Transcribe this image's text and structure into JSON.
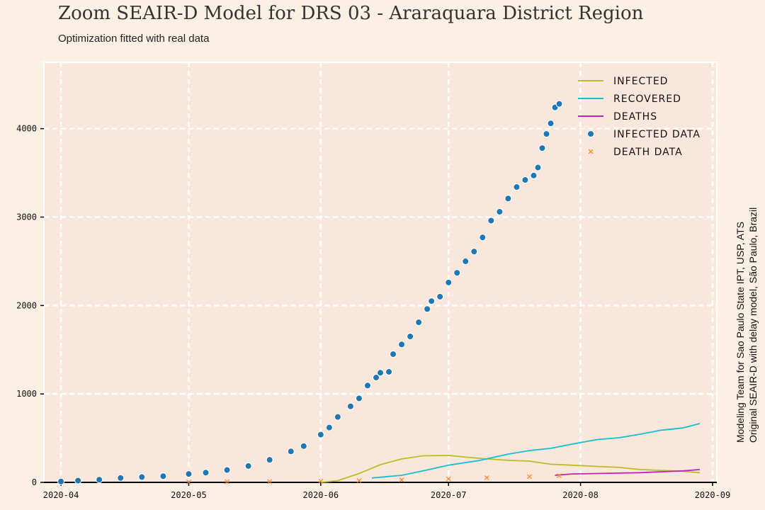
{
  "title": "Zoom SEAIR-D Model for DRS 03 - Araraquara District Region",
  "subtitle": "Optimization fitted with real data",
  "side_note": {
    "line1": "Modeling Team for Sao Paulo State IPT, USP, ATS",
    "line2": "Original SEAIR-D with delay model, São Paulo, Brazil"
  },
  "colors": {
    "background": "#fcefe4",
    "plot_background": "#fae7dc",
    "infected": "#bcbd22",
    "recovered": "#17becf",
    "deaths": "#c020c0",
    "infected_data": "#1f77b4",
    "death_data": "#ff7f0e",
    "grid": "#ffffff"
  },
  "chart_data": {
    "type": "line",
    "title": "Zoom SEAIR-D Model for DRS 03 - Araraquara District Region",
    "xlabel": "",
    "ylabel": "",
    "x_type": "date",
    "xlim": [
      "2020-03-28",
      "2020-09-02"
    ],
    "ylim": [
      0,
      4750
    ],
    "x_ticks": [
      "2020-04-01",
      "2020-05-01",
      "2020-06-01",
      "2020-07-01",
      "2020-08-01",
      "2020-09-01"
    ],
    "x_tick_labels": [
      "2020-04",
      "2020-05",
      "2020-06",
      "2020-07",
      "2020-08",
      "2020-09"
    ],
    "y_ticks": [
      0,
      1000,
      2000,
      3000,
      4000
    ],
    "y_tick_labels": [
      "0",
      "1000",
      "2000",
      "3000",
      "4000"
    ],
    "grid": true,
    "legend_position": "top-right",
    "legend": [
      "INFECTED",
      "RECOVERED",
      "DEATHS",
      "INFECTED DATA",
      "DEATH DATA"
    ],
    "series": [
      {
        "name": "INFECTED",
        "kind": "line",
        "color": "#bcbd22",
        "points": [
          [
            "2020-06-01",
            0
          ],
          [
            "2020-06-05",
            20
          ],
          [
            "2020-06-10",
            100
          ],
          [
            "2020-06-15",
            200
          ],
          [
            "2020-06-20",
            265
          ],
          [
            "2020-06-25",
            300
          ],
          [
            "2020-07-01",
            305
          ],
          [
            "2020-07-05",
            285
          ],
          [
            "2020-07-10",
            265
          ],
          [
            "2020-07-15",
            250
          ],
          [
            "2020-07-20",
            240
          ],
          [
            "2020-07-25",
            205
          ],
          [
            "2020-08-01",
            190
          ],
          [
            "2020-08-05",
            180
          ],
          [
            "2020-08-10",
            170
          ],
          [
            "2020-08-15",
            145
          ],
          [
            "2020-08-20",
            135
          ],
          [
            "2020-08-25",
            125
          ],
          [
            "2020-08-29",
            110
          ]
        ]
      },
      {
        "name": "RECOVERED",
        "kind": "line",
        "color": "#17becf",
        "points": [
          [
            "2020-06-13",
            50
          ],
          [
            "2020-06-20",
            80
          ],
          [
            "2020-06-25",
            130
          ],
          [
            "2020-07-01",
            195
          ],
          [
            "2020-07-08",
            245
          ],
          [
            "2020-07-15",
            320
          ],
          [
            "2020-07-20",
            360
          ],
          [
            "2020-07-25",
            385
          ],
          [
            "2020-08-01",
            450
          ],
          [
            "2020-08-05",
            485
          ],
          [
            "2020-08-10",
            505
          ],
          [
            "2020-08-15",
            545
          ],
          [
            "2020-08-20",
            590
          ],
          [
            "2020-08-25",
            615
          ],
          [
            "2020-08-29",
            665
          ]
        ]
      },
      {
        "name": "DEATHS",
        "kind": "line",
        "color": "#c020c0",
        "points": [
          [
            "2020-07-26",
            80
          ],
          [
            "2020-07-30",
            95
          ],
          [
            "2020-08-05",
            100
          ],
          [
            "2020-08-10",
            105
          ],
          [
            "2020-08-15",
            110
          ],
          [
            "2020-08-20",
            120
          ],
          [
            "2020-08-25",
            130
          ],
          [
            "2020-08-29",
            145
          ]
        ]
      },
      {
        "name": "INFECTED DATA",
        "kind": "scatter",
        "marker": "circle",
        "color": "#1f77b4",
        "points": [
          [
            "2020-04-01",
            10
          ],
          [
            "2020-04-05",
            20
          ],
          [
            "2020-04-10",
            30
          ],
          [
            "2020-04-15",
            50
          ],
          [
            "2020-04-20",
            60
          ],
          [
            "2020-04-25",
            70
          ],
          [
            "2020-05-01",
            95
          ],
          [
            "2020-05-05",
            110
          ],
          [
            "2020-05-10",
            140
          ],
          [
            "2020-05-15",
            185
          ],
          [
            "2020-05-20",
            255
          ],
          [
            "2020-05-25",
            350
          ],
          [
            "2020-05-28",
            410
          ],
          [
            "2020-06-01",
            540
          ],
          [
            "2020-06-03",
            620
          ],
          [
            "2020-06-05",
            740
          ],
          [
            "2020-06-08",
            860
          ],
          [
            "2020-06-10",
            950
          ],
          [
            "2020-06-12",
            1095
          ],
          [
            "2020-06-14",
            1185
          ],
          [
            "2020-06-15",
            1240
          ],
          [
            "2020-06-17",
            1250
          ],
          [
            "2020-06-18",
            1450
          ],
          [
            "2020-06-20",
            1560
          ],
          [
            "2020-06-22",
            1650
          ],
          [
            "2020-06-24",
            1810
          ],
          [
            "2020-06-26",
            1960
          ],
          [
            "2020-06-27",
            2050
          ],
          [
            "2020-06-29",
            2100
          ],
          [
            "2020-07-01",
            2260
          ],
          [
            "2020-07-03",
            2370
          ],
          [
            "2020-07-05",
            2500
          ],
          [
            "2020-07-07",
            2610
          ],
          [
            "2020-07-09",
            2770
          ],
          [
            "2020-07-11",
            2960
          ],
          [
            "2020-07-13",
            3060
          ],
          [
            "2020-07-15",
            3210
          ],
          [
            "2020-07-17",
            3340
          ],
          [
            "2020-07-19",
            3420
          ],
          [
            "2020-07-21",
            3470
          ],
          [
            "2020-07-22",
            3560
          ],
          [
            "2020-07-23",
            3780
          ],
          [
            "2020-07-24",
            3940
          ],
          [
            "2020-07-25",
            4060
          ],
          [
            "2020-07-26",
            4240
          ],
          [
            "2020-07-27",
            4280
          ]
        ]
      },
      {
        "name": "DEATH DATA",
        "kind": "scatter",
        "marker": "x",
        "color": "#ff7f0e",
        "points": [
          [
            "2020-05-01",
            5
          ],
          [
            "2020-05-10",
            8
          ],
          [
            "2020-05-20",
            10
          ],
          [
            "2020-06-01",
            13
          ],
          [
            "2020-06-10",
            20
          ],
          [
            "2020-06-20",
            28
          ],
          [
            "2020-07-01",
            38
          ],
          [
            "2020-07-10",
            52
          ],
          [
            "2020-07-20",
            65
          ],
          [
            "2020-07-27",
            75
          ]
        ]
      }
    ]
  }
}
